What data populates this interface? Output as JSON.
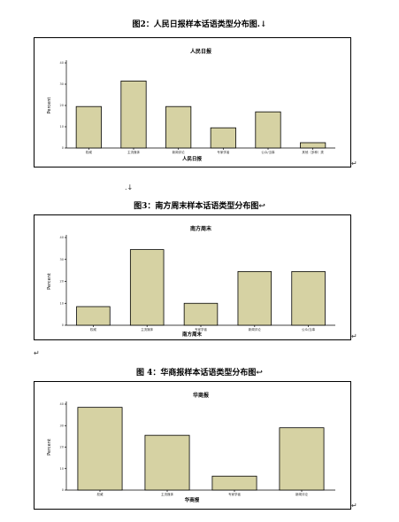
{
  "captions": {
    "fig2": "图2：人民日报样本话语类型分布图.↓",
    "fig3": "图3：南方周末样本话语类型分布图↩",
    "fig4": "图 4：华商报样本话语类型分布图↩"
  },
  "para_marks": {
    "after_fig2": "↵",
    "between": ".↓",
    "after_fig3": "↵",
    "after_fig3b": "↵",
    "after_fig4": "↵"
  },
  "chart_data": [
    {
      "type": "bar",
      "title": "人民日报",
      "xlabel": "人民日报",
      "ylabel": "Percent",
      "ylim": [
        0,
        40
      ],
      "yticks": [
        "0",
        "10",
        "20",
        "30",
        "40"
      ],
      "categories": [
        "权威",
        "主流媒体",
        "新闻评论",
        "专家学者",
        "公众/当事",
        "其他（多种）类"
      ],
      "values": [
        19.5,
        31.5,
        19.5,
        9.5,
        17,
        2.5
      ]
    },
    {
      "type": "bar",
      "title": "南方周末",
      "xlabel": "南方周末",
      "ylabel": "Percent",
      "ylim": [
        0,
        40
      ],
      "yticks": [
        "0",
        "10",
        "20",
        "30",
        "40"
      ],
      "categories": [
        "权威",
        "主流媒体",
        "专家学者",
        "新闻评论",
        "公众/当事"
      ],
      "values": [
        8.5,
        34.5,
        10,
        24.5,
        24.5
      ]
    },
    {
      "type": "bar",
      "title": "华商报",
      "xlabel": "华商报",
      "ylabel": "Percent",
      "ylim": [
        0,
        40
      ],
      "yticks": [
        "0",
        "10",
        "20",
        "30",
        "40"
      ],
      "categories": [
        "权威",
        "主流媒体",
        "专家学者",
        "新闻评论"
      ],
      "values": [
        38.5,
        25.5,
        6.5,
        29
      ]
    }
  ]
}
